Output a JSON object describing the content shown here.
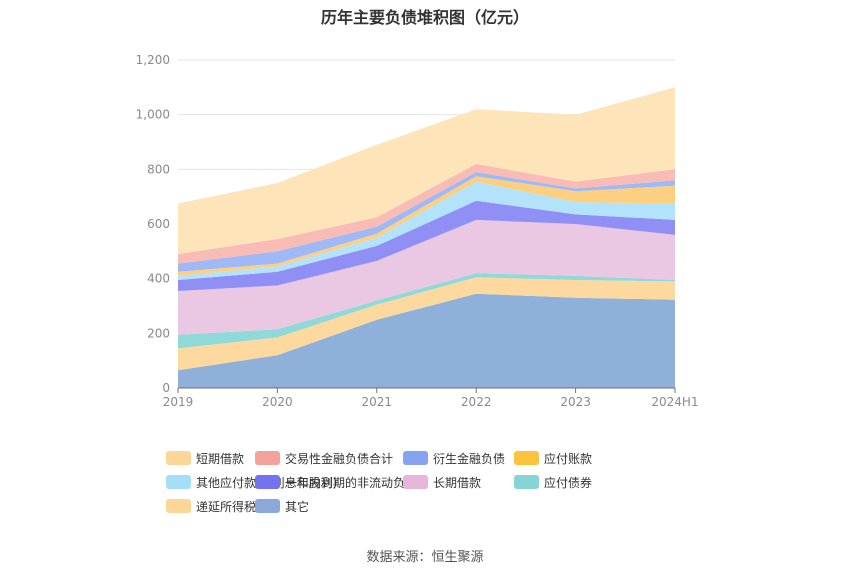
{
  "chart_data": {
    "type": "area",
    "stacked": true,
    "title": "历年主要负债堆积图（亿元）",
    "categories": [
      "2019",
      "2020",
      "2021",
      "2022",
      "2023",
      "2024H1"
    ],
    "ylim": [
      0,
      1200
    ],
    "yticks": [
      "0",
      "200",
      "400",
      "600",
      "800",
      "1,000",
      "1,200"
    ],
    "grid": true,
    "legend_position": "bottom",
    "series": [
      {
        "name": "其它",
        "color": "#8fb0d9",
        "values": [
          65,
          120,
          250,
          345,
          330,
          323
        ]
      },
      {
        "name": "递延所得税负债",
        "color": "#fdd9a0",
        "values": [
          80,
          65,
          55,
          60,
          65,
          67
        ]
      },
      {
        "name": "应付债券",
        "color": "#8fd9d9",
        "values": [
          50,
          30,
          15,
          15,
          15,
          5
        ]
      },
      {
        "name": "长期借款",
        "color": "#eac7e3",
        "values": [
          160,
          160,
          145,
          195,
          190,
          165
        ]
      },
      {
        "name": "一年内到期的非流动负债",
        "color": "#8f8ff5",
        "values": [
          40,
          50,
          55,
          70,
          35,
          55
        ]
      },
      {
        "name": "其他应付款(含利息和股利)",
        "color": "#b3e3fa",
        "values": [
          15,
          20,
          30,
          70,
          45,
          60
        ]
      },
      {
        "name": "应付账款",
        "color": "#fcd080",
        "values": [
          15,
          10,
          15,
          20,
          40,
          65
        ]
      },
      {
        "name": "衍生金融负债",
        "color": "#9eb9f5",
        "values": [
          30,
          45,
          25,
          15,
          10,
          20
        ]
      },
      {
        "name": "交易性金融负债合计",
        "color": "#f8bbb5",
        "values": [
          35,
          45,
          35,
          30,
          25,
          40
        ]
      },
      {
        "name": "短期借款",
        "color": "#fde5b9",
        "values": [
          185,
          205,
          265,
          200,
          245,
          300
        ]
      }
    ]
  },
  "legend": [
    {
      "label": "短期借款",
      "color": "#fcd696"
    },
    {
      "label": "交易性金融负债合计",
      "color": "#f4a09b"
    },
    {
      "label": "衍生金融负债",
      "color": "#85a3f0"
    },
    {
      "label": "应付账款",
      "color": "#fbc43c"
    },
    {
      "label": "其他应付款(含利息和股利)",
      "color": "#a3dff7"
    },
    {
      "label": "一年内到期的非流动负债",
      "color": "#7372f0"
    },
    {
      "label": "长期借款",
      "color": "#e6b5d9"
    },
    {
      "label": "应付债券",
      "color": "#86d4d4"
    },
    {
      "label": "递延所得税负债",
      "color": "#fcd696"
    },
    {
      "label": "其它",
      "color": "#8aa9d8"
    }
  ],
  "source": "数据来源：恒生聚源"
}
